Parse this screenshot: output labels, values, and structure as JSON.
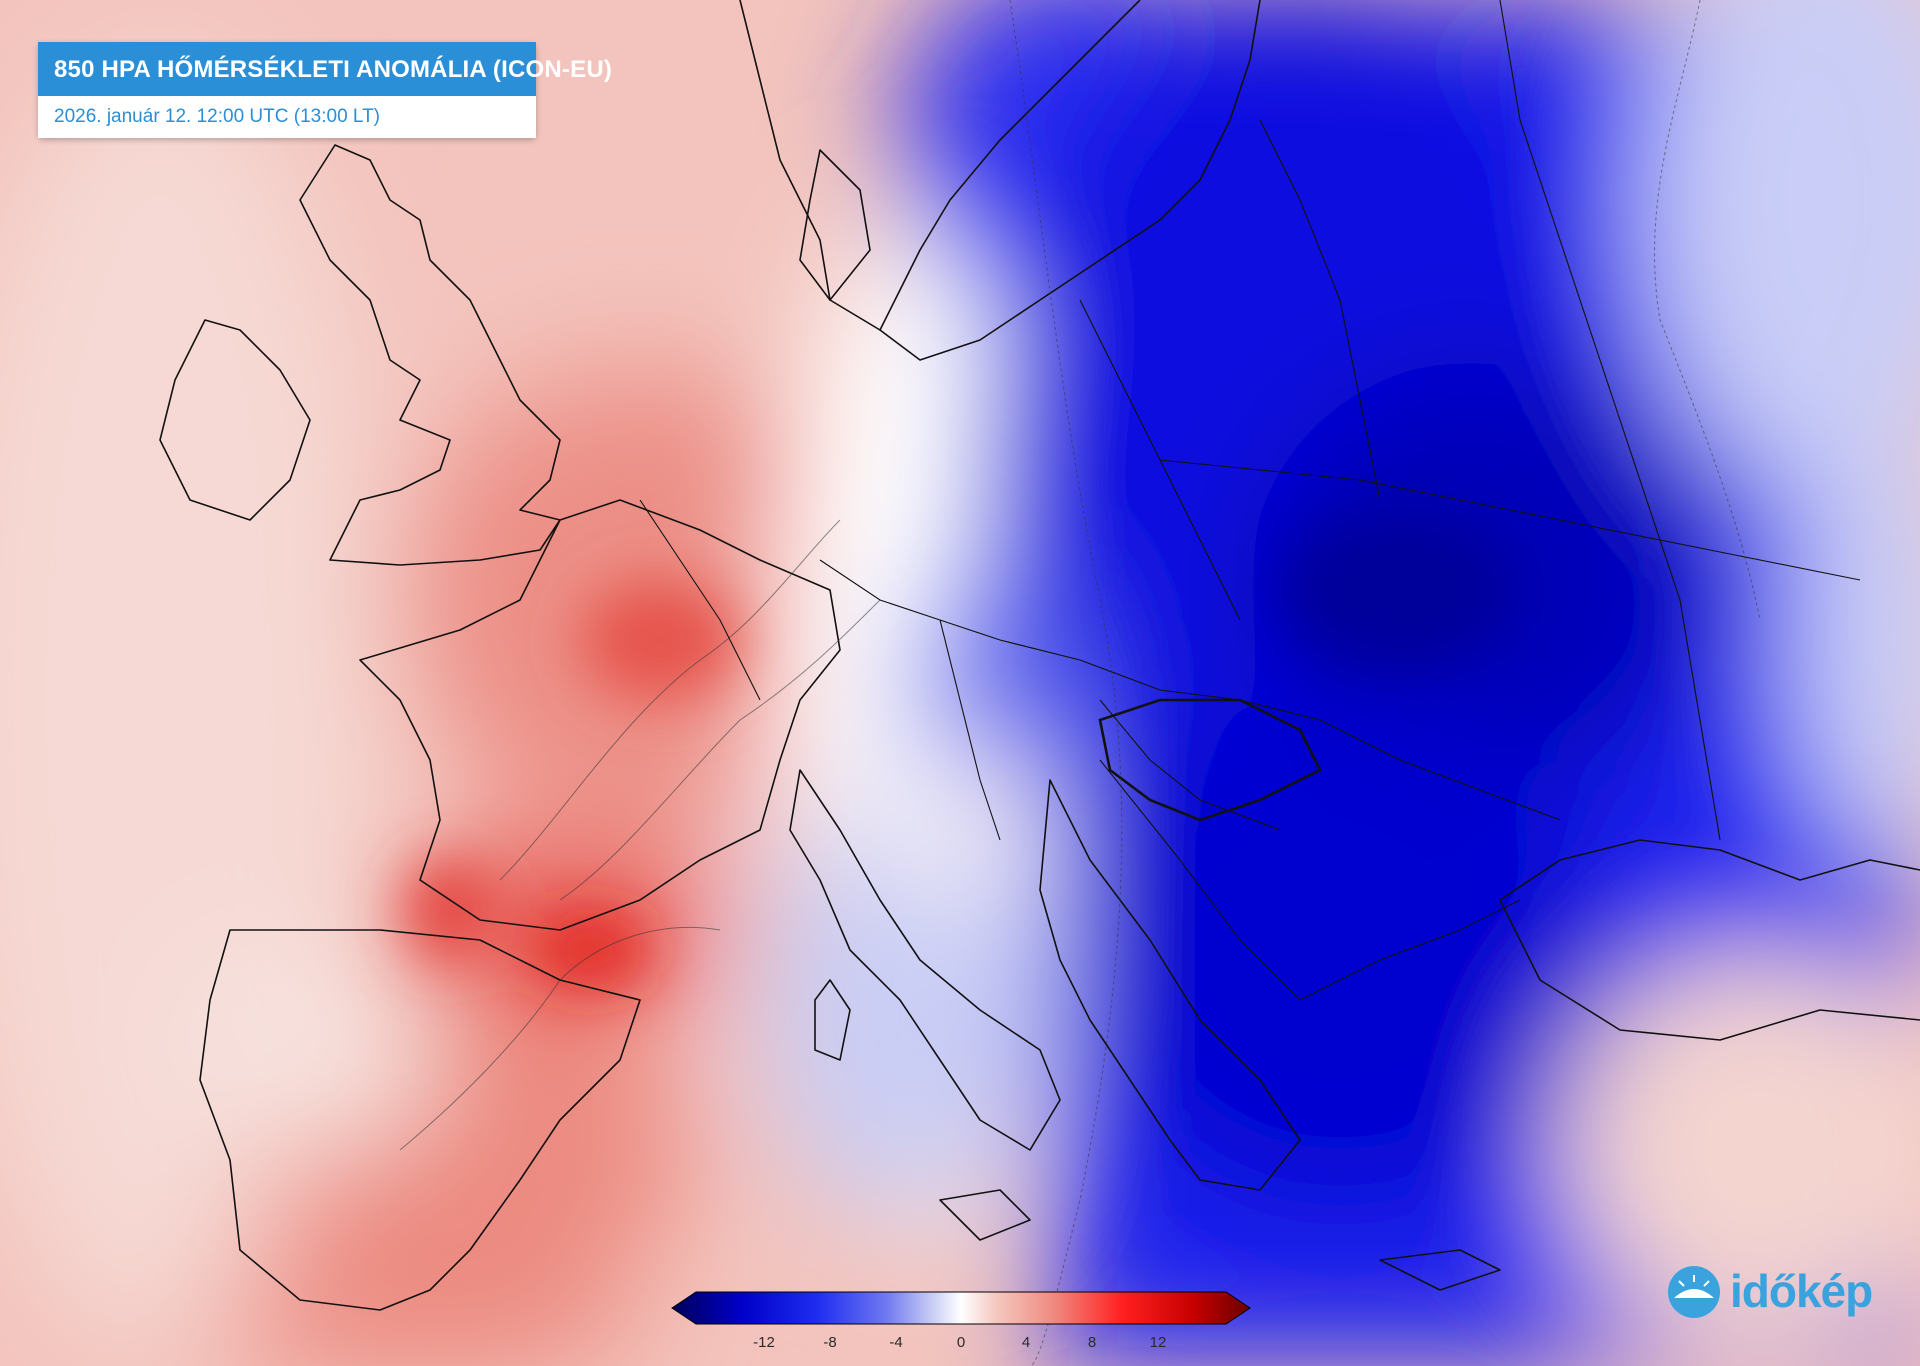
{
  "header": {
    "title": "850 HPA HŐMÉRSÉKLETI ANOMÁLIA (ICON-EU)",
    "subtitle": "2026. január 12. 12:00 UTC (13:00 LT)"
  },
  "legend": {
    "ticks": [
      "-12",
      "-8",
      "-4",
      "0",
      "4",
      "8",
      "12"
    ],
    "colors": [
      "#00005a",
      "#0000c8",
      "#1e2cf0",
      "#6f78f0",
      "#c8cdf5",
      "#ffffff",
      "#f5c8c0",
      "#f08a80",
      "#ff2020",
      "#c80000",
      "#6a0000"
    ]
  },
  "brand": {
    "logo_text": "időkép",
    "logo_icon": "sun-cloud-icon"
  }
}
